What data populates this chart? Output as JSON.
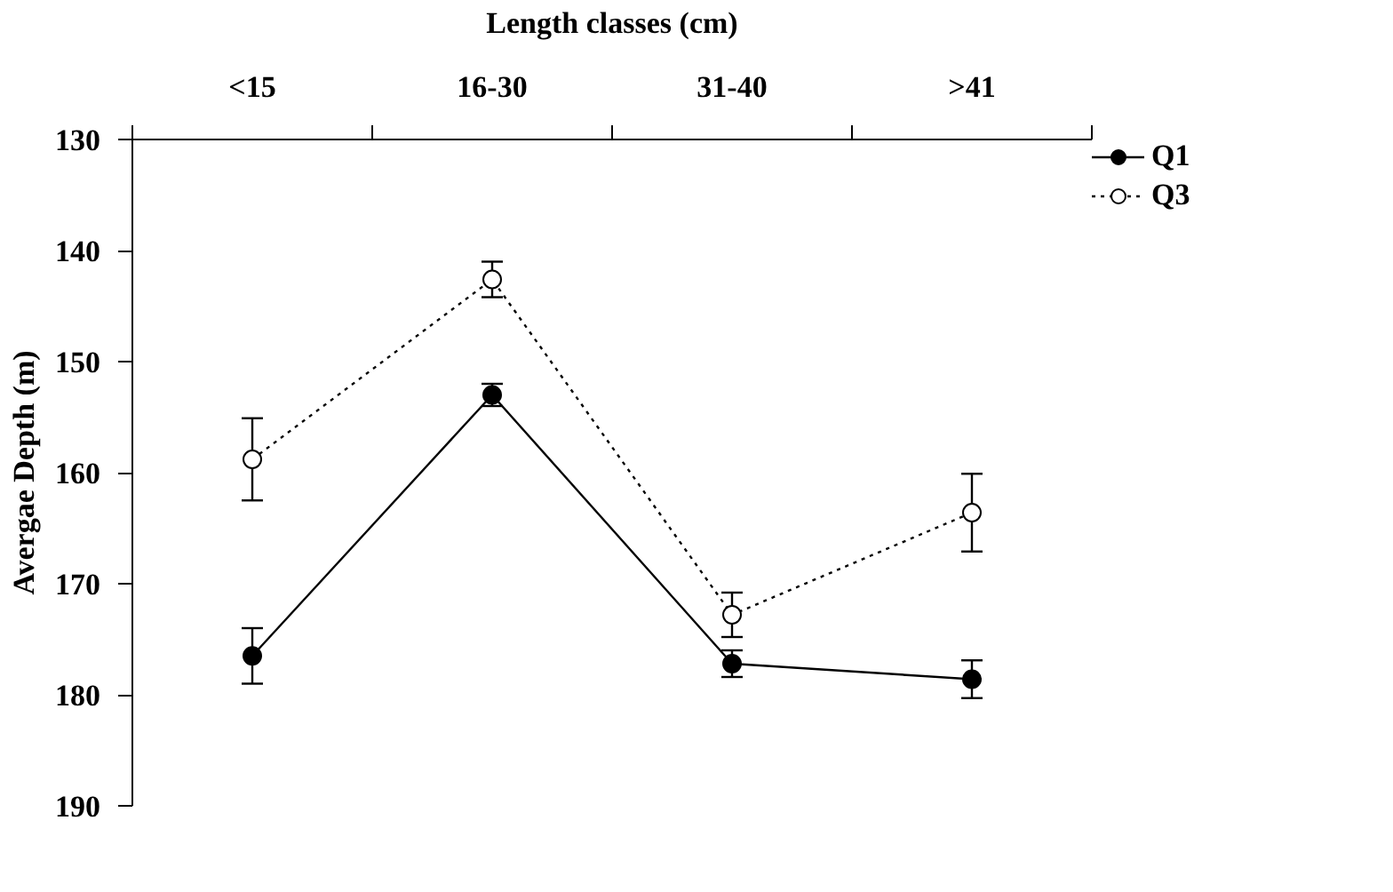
{
  "chart_data": {
    "type": "line",
    "xlabel": "Length classes (cm)",
    "ylabel": "Avergae Depth (m)",
    "categories": [
      "<15",
      "16-30",
      "31-40",
      ">41"
    ],
    "ylim": [
      190,
      130
    ],
    "yticks": [
      130,
      140,
      150,
      160,
      170,
      180,
      190
    ],
    "legend": "top right",
    "grid": false,
    "marker": "circle",
    "series": [
      {
        "name": "Q1",
        "color": "#000000",
        "line_style": "solid",
        "values": [
          176.5,
          153.0,
          177.2,
          178.6
        ],
        "errors": [
          2.5,
          1.0,
          1.2,
          1.7
        ]
      },
      {
        "name": "Q3",
        "color": "#000000",
        "line_style": "dotted",
        "values": [
          158.8,
          142.6,
          172.8,
          163.6
        ],
        "errors": [
          3.7,
          1.6,
          2.0,
          3.5
        ]
      }
    ]
  }
}
